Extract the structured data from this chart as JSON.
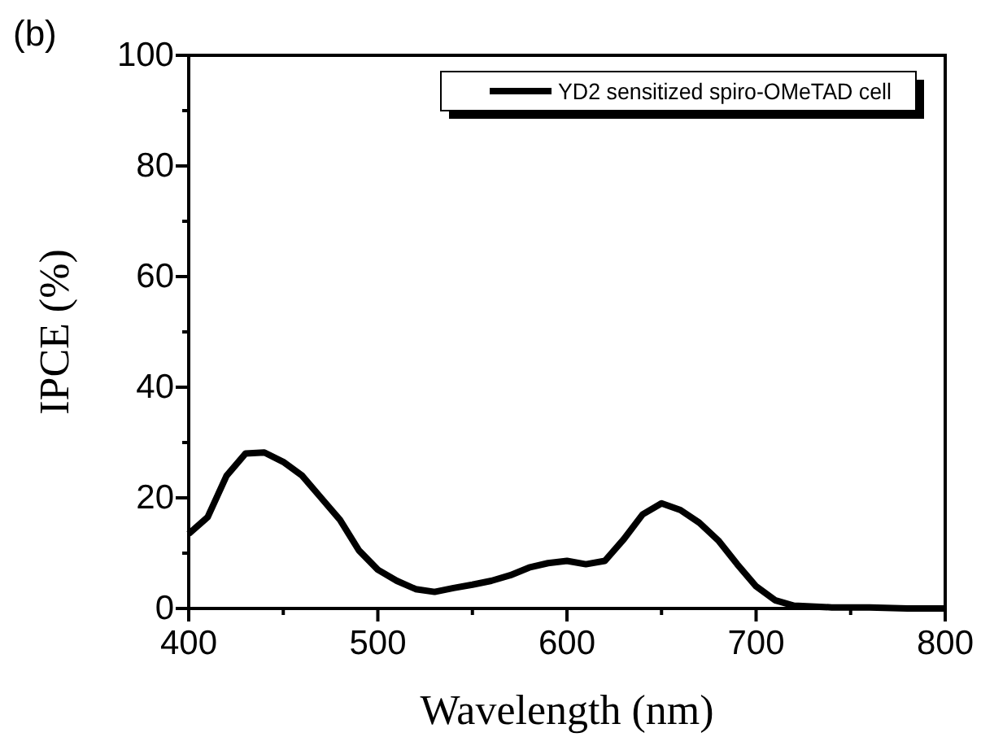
{
  "chart_data": {
    "type": "line",
    "annotations": [
      "(b)"
    ],
    "xlabel": "Wavelength (nm)",
    "ylabel": "IPCE (%)",
    "x": [
      400,
      410,
      420,
      430,
      440,
      450,
      460,
      470,
      480,
      490,
      500,
      510,
      520,
      530,
      540,
      550,
      560,
      570,
      580,
      590,
      600,
      610,
      620,
      630,
      640,
      650,
      660,
      670,
      680,
      690,
      700,
      710,
      720,
      740,
      760,
      780,
      800
    ],
    "series": [
      {
        "name": "YD2 sensitized spiro-OMeTAD cell",
        "color": "#000000",
        "values": [
          13.5,
          16.5,
          24,
          28,
          28.2,
          26.5,
          24,
          20,
          16,
          10.5,
          7,
          5,
          3.5,
          3,
          3.7,
          4.3,
          5,
          6,
          7.4,
          8.2,
          8.6,
          8,
          8.6,
          12.5,
          17,
          19,
          17.8,
          15.5,
          12.3,
          8,
          4,
          1.5,
          0.5,
          0.2,
          0.2,
          0,
          0
        ]
      }
    ],
    "xlim": [
      400,
      800
    ],
    "ylim": [
      0,
      100
    ],
    "xticks": [
      400,
      {
        "value": 450,
        "label": null
      },
      500,
      {
        "value": 550,
        "label": null
      },
      600,
      {
        "value": 650,
        "label": null
      },
      700,
      {
        "value": 750,
        "label": null
      },
      800
    ],
    "yticks": [
      0,
      {
        "value": 10,
        "label": null
      },
      20,
      {
        "value": 30,
        "label": null
      },
      40,
      {
        "value": 50,
        "label": null
      },
      60,
      {
        "value": 70,
        "label": null
      },
      80,
      {
        "value": 90,
        "label": null
      },
      100
    ],
    "legend": "top right",
    "marker": "none",
    "line_style": "solid",
    "grid": false
  }
}
